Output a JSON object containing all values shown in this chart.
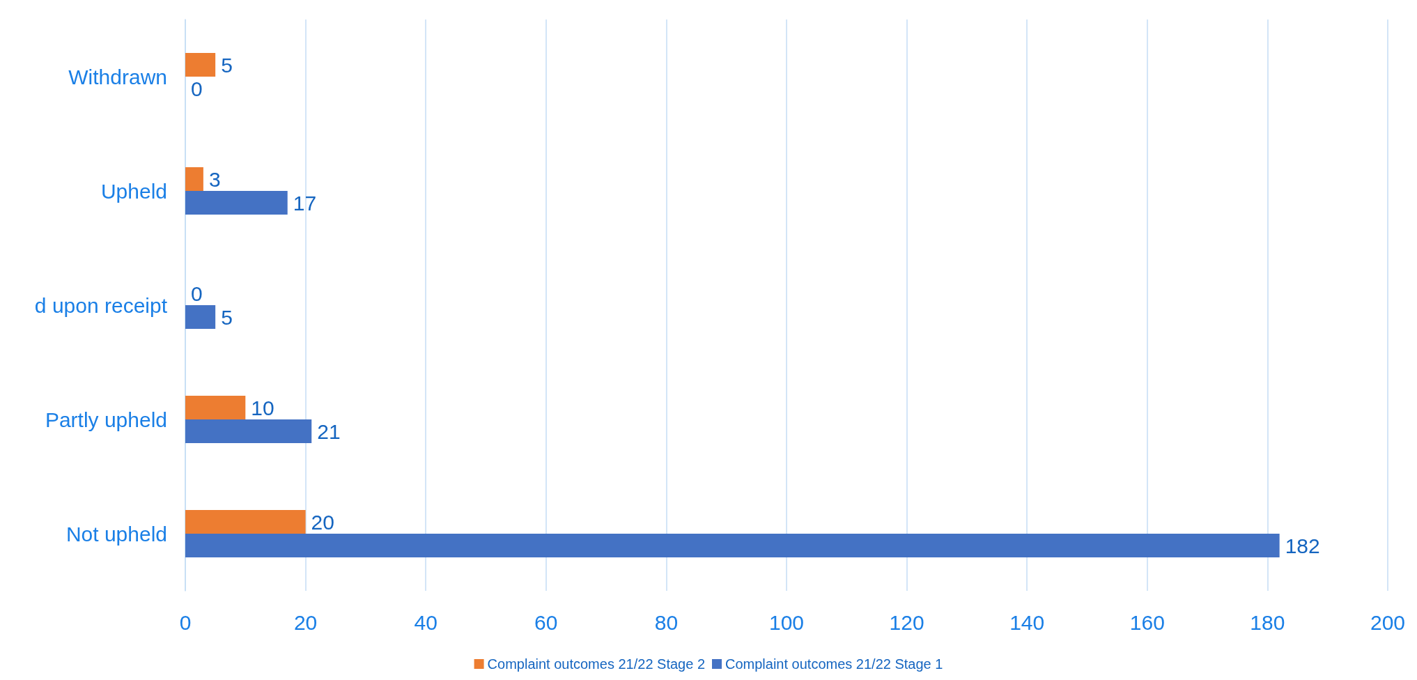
{
  "chart_data": {
    "type": "bar",
    "orientation": "horizontal",
    "categories": [
      "Withdrawn",
      "Upheld",
      "d upon receipt",
      "Partly upheld",
      "Not upheld"
    ],
    "series": [
      {
        "name": "Complaint outcomes 21/22 Stage 2",
        "color": "#ed7d31",
        "values": [
          5,
          3,
          0,
          10,
          20
        ]
      },
      {
        "name": "Complaint outcomes 21/22 Stage 1",
        "color": "#4472c4",
        "values": [
          0,
          17,
          5,
          21,
          182
        ]
      }
    ],
    "xlim": [
      0,
      200
    ],
    "xticks": [
      0,
      20,
      40,
      60,
      80,
      100,
      120,
      140,
      160,
      180,
      200
    ],
    "grid": "x",
    "legend": "bottom",
    "data_labels": true
  }
}
